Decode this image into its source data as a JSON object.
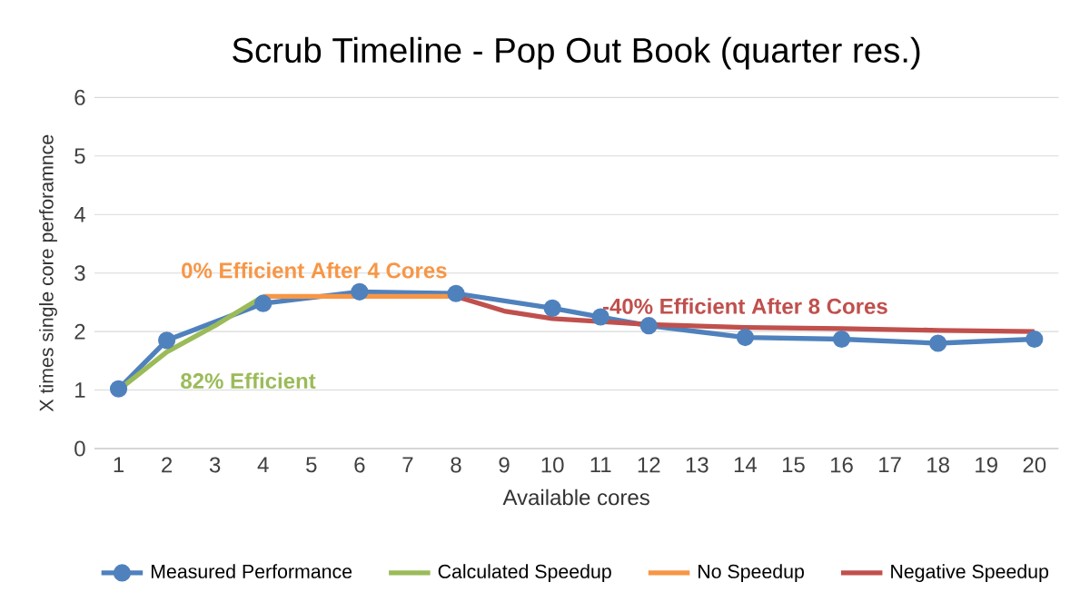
{
  "chart_data": {
    "type": "line",
    "title": "Scrub Timeline - Pop Out Book (quarter res.)",
    "xlabel": "Available cores",
    "ylabel": "X times single core perforamnce",
    "xlim": [
      0.5,
      20.5
    ],
    "xticks": [
      1,
      2,
      3,
      4,
      5,
      6,
      7,
      8,
      9,
      10,
      11,
      12,
      13,
      14,
      15,
      16,
      17,
      18,
      19,
      20
    ],
    "ylim": [
      0,
      6
    ],
    "yticks": [
      0,
      1,
      2,
      3,
      4,
      5,
      6
    ],
    "grid": "y",
    "legend": "bottom",
    "line_style": "solid",
    "series": [
      {
        "name": "Measured Performance",
        "color": "#4f81bd",
        "marker": "circle",
        "x": [
          1,
          2,
          4,
          6,
          8,
          10,
          11,
          12,
          14,
          16,
          18,
          20
        ],
        "values": [
          1.02,
          1.85,
          2.48,
          2.68,
          2.65,
          2.4,
          2.25,
          2.1,
          1.9,
          1.87,
          1.8,
          1.87
        ]
      },
      {
        "name": "Calculated Speedup",
        "color": "#9bbb59",
        "marker": "none",
        "x": [
          1,
          2,
          3,
          4
        ],
        "values": [
          1.0,
          1.65,
          2.1,
          2.6
        ]
      },
      {
        "name": "No Speedup",
        "color": "#f79646",
        "marker": "none",
        "x": [
          4,
          8
        ],
        "values": [
          2.6,
          2.6
        ]
      },
      {
        "name": "Negative Speedup",
        "color": "#c0504d",
        "marker": "none",
        "x": [
          8,
          9,
          10,
          12,
          14,
          16,
          18,
          20
        ],
        "values": [
          2.6,
          2.35,
          2.22,
          2.12,
          2.07,
          2.05,
          2.02,
          2.0
        ]
      }
    ],
    "annotations": [
      {
        "text": "82% Efficient",
        "x": 2,
        "y": 1.65
      },
      {
        "text": "0% Efficient After 4 Cores",
        "x": 8,
        "y": 2.6
      },
      {
        "text": "-40% Efficient After 8 Cores",
        "x": 14,
        "y": 2.07
      }
    ]
  }
}
